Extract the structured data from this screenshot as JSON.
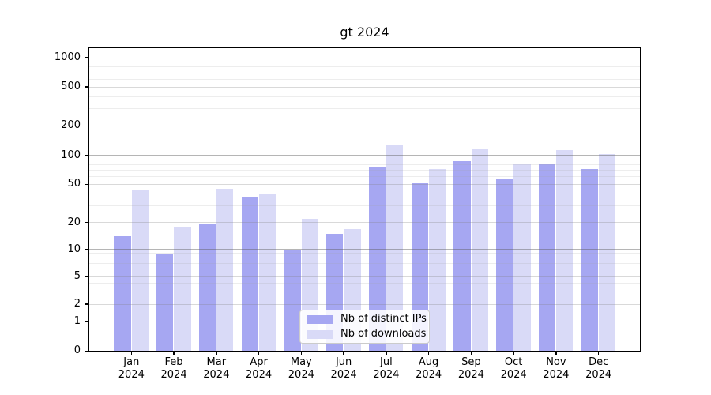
{
  "title": "gt 2024",
  "legend": {
    "items": [
      {
        "label": "Nb of distinct IPs",
        "color": "#a6a7f2"
      },
      {
        "label": "Nb of downloads",
        "color": "#d9daf7"
      }
    ]
  },
  "axes": {
    "y_ticks": [
      {
        "label": "1000",
        "value": 1000
      },
      {
        "label": "500",
        "value": 500
      },
      {
        "label": "200",
        "value": 200
      },
      {
        "label": "100",
        "value": 100
      },
      {
        "label": "50",
        "value": 50
      },
      {
        "label": "20",
        "value": 20
      },
      {
        "label": "10",
        "value": 10
      },
      {
        "label": "5",
        "value": 5
      },
      {
        "label": "2",
        "value": 2
      },
      {
        "label": "1",
        "value": 1
      },
      {
        "label": "0",
        "value": 0
      }
    ],
    "x_ticks": [
      {
        "month": "Jan",
        "year": "2024"
      },
      {
        "month": "Feb",
        "year": "2024"
      },
      {
        "month": "Mar",
        "year": "2024"
      },
      {
        "month": "Apr",
        "year": "2024"
      },
      {
        "month": "May",
        "year": "2024"
      },
      {
        "month": "Jun",
        "year": "2024"
      },
      {
        "month": "Jul",
        "year": "2024"
      },
      {
        "month": "Aug",
        "year": "2024"
      },
      {
        "month": "Sep",
        "year": "2024"
      },
      {
        "month": "Oct",
        "year": "2024"
      },
      {
        "month": "Nov",
        "year": "2024"
      },
      {
        "month": "Dec",
        "year": "2024"
      }
    ]
  },
  "chart_data": {
    "type": "bar",
    "title": "gt 2024",
    "categories": [
      "Jan 2024",
      "Feb 2024",
      "Mar 2024",
      "Apr 2024",
      "May 2024",
      "Jun 2024",
      "Jul 2024",
      "Aug 2024",
      "Sep 2024",
      "Oct 2024",
      "Nov 2024",
      "Dec 2024"
    ],
    "series": [
      {
        "name": "Nb of distinct IPs",
        "color": "#a6a7f2",
        "values": [
          14,
          9,
          19,
          37,
          10,
          15,
          75,
          51,
          87,
          57,
          81,
          72
        ]
      },
      {
        "name": "Nb of downloads",
        "color": "#d9daf7",
        "values": [
          43,
          18,
          45,
          39,
          22,
          17,
          126,
          72,
          115,
          80,
          113,
          104
        ]
      }
    ],
    "yscale": "symlog",
    "ylim": [
      0,
      1000
    ],
    "y_tick_values": [
      0,
      1,
      2,
      5,
      10,
      20,
      50,
      100,
      200,
      500,
      1000
    ],
    "xlabel": "",
    "ylabel": "",
    "grid": true,
    "legend_position": "lower center"
  }
}
